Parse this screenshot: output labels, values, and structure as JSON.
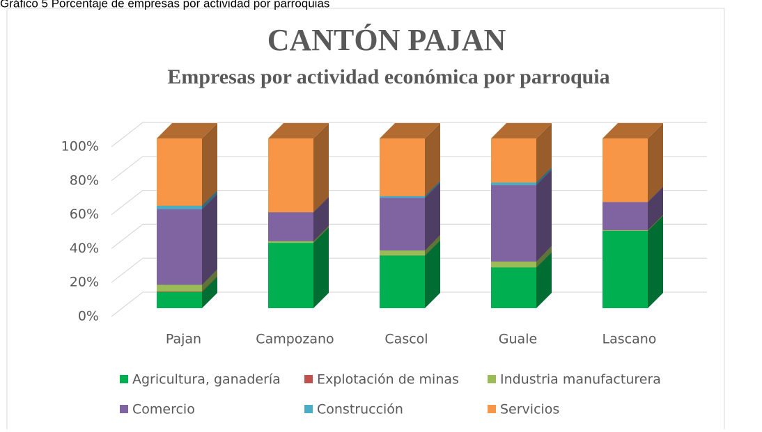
{
  "chart_data": {
    "type": "bar3d_stacked",
    "caption": "Gráfico 5 Porcentaje de empresas por actividad por parroquias",
    "title": "CANTÓN PAJAN",
    "subtitle": "Empresas por actividad económica por parroquia",
    "categories": [
      "Pajan",
      "Campozano",
      "Cascol",
      "Guale",
      "Lascano"
    ],
    "series": [
      {
        "name": "Agricultura, ganadería",
        "color": "#00b050",
        "values": [
          9.5,
          38.5,
          31,
          24,
          45.5
        ]
      },
      {
        "name": "Explotación de minas",
        "color": "#c0504d",
        "values": [
          0.3,
          0,
          0,
          0,
          0
        ]
      },
      {
        "name": "Industria manufacturera",
        "color": "#9bbb59",
        "values": [
          4,
          1,
          3,
          3.5,
          0.5
        ]
      },
      {
        "name": "Comercio",
        "color": "#8064a2",
        "values": [
          44.5,
          17,
          31,
          45,
          16.5
        ]
      },
      {
        "name": "Construcción",
        "color": "#4bacc6",
        "values": [
          2,
          0,
          1,
          1.5,
          0
        ]
      },
      {
        "name": "Servicios",
        "color": "#f79646",
        "values": [
          39.7,
          43.5,
          34,
          26,
          37.5
        ]
      }
    ],
    "ylim": [
      0,
      100
    ],
    "yticks": [
      {
        "value": 0,
        "label": "0%"
      },
      {
        "value": 20,
        "label": "20%"
      },
      {
        "value": 40,
        "label": "40%"
      },
      {
        "value": 60,
        "label": "60%"
      },
      {
        "value": 80,
        "label": "80%"
      },
      {
        "value": 100,
        "label": "100%"
      }
    ],
    "grid": true,
    "legend": "bottom"
  }
}
